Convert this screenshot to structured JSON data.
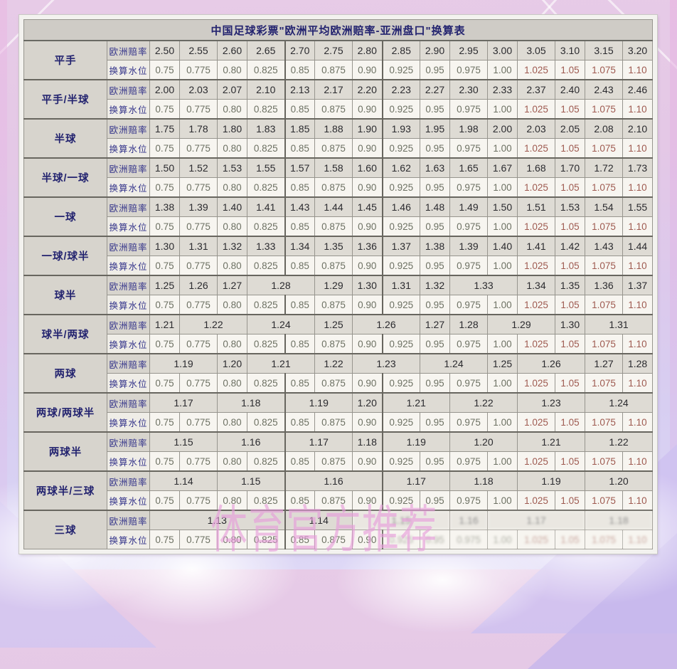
{
  "page": {
    "title": "中国足球彩票\"欧洲平均欧洲赔率-亚洲盘口\"换算表",
    "watermark": "体育官方推荐"
  },
  "table": {
    "row_header_odds": "欧洲赔率",
    "row_header_water": "换算水位",
    "water_levels": [
      "0.75",
      "0.775",
      "0.80",
      "0.825",
      "0.85",
      "0.875",
      "0.90",
      "0.925",
      "0.95",
      "0.975",
      "1.00",
      "1.025",
      "1.05",
      "1.075",
      "1.10"
    ],
    "groups": [
      {
        "handicap": "平手",
        "odds": [
          [
            "2.50",
            1
          ],
          [
            "2.55",
            1
          ],
          [
            "2.60",
            1
          ],
          [
            "2.65",
            1
          ],
          [
            "2.70",
            1
          ],
          [
            "2.75",
            1
          ],
          [
            "2.80",
            1
          ],
          [
            "2.85",
            1
          ],
          [
            "2.90",
            1
          ],
          [
            "2.95",
            1
          ],
          [
            "3.00",
            1
          ],
          [
            "3.05",
            1
          ],
          [
            "3.10",
            1
          ],
          [
            "3.15",
            1
          ],
          [
            "3.20",
            1
          ]
        ]
      },
      {
        "handicap": "平手/半球",
        "odds": [
          [
            "2.00",
            1
          ],
          [
            "2.03",
            1
          ],
          [
            "2.07",
            1
          ],
          [
            "2.10",
            1
          ],
          [
            "2.13",
            1
          ],
          [
            "2.17",
            1
          ],
          [
            "2.20",
            1
          ],
          [
            "2.23",
            1
          ],
          [
            "2.27",
            1
          ],
          [
            "2.30",
            1
          ],
          [
            "2.33",
            1
          ],
          [
            "2.37",
            1
          ],
          [
            "2.40",
            1
          ],
          [
            "2.43",
            1
          ],
          [
            "2.46",
            1
          ]
        ]
      },
      {
        "handicap": "半球",
        "odds": [
          [
            "1.75",
            1
          ],
          [
            "1.78",
            1
          ],
          [
            "1.80",
            1
          ],
          [
            "1.83",
            1
          ],
          [
            "1.85",
            1
          ],
          [
            "1.88",
            1
          ],
          [
            "1.90",
            1
          ],
          [
            "1.93",
            1
          ],
          [
            "1.95",
            1
          ],
          [
            "1.98",
            1
          ],
          [
            "2.00",
            1
          ],
          [
            "2.03",
            1
          ],
          [
            "2.05",
            1
          ],
          [
            "2.08",
            1
          ],
          [
            "2.10",
            1
          ]
        ]
      },
      {
        "handicap": "半球/一球",
        "odds": [
          [
            "1.50",
            1
          ],
          [
            "1.52",
            1
          ],
          [
            "1.53",
            1
          ],
          [
            "1.55",
            1
          ],
          [
            "1.57",
            1
          ],
          [
            "1.58",
            1
          ],
          [
            "1.60",
            1
          ],
          [
            "1.62",
            1
          ],
          [
            "1.63",
            1
          ],
          [
            "1.65",
            1
          ],
          [
            "1.67",
            1
          ],
          [
            "1.68",
            1
          ],
          [
            "1.70",
            1
          ],
          [
            "1.72",
            1
          ],
          [
            "1.73",
            1
          ]
        ]
      },
      {
        "handicap": "一球",
        "odds": [
          [
            "1.38",
            1
          ],
          [
            "1.39",
            1
          ],
          [
            "1.40",
            1
          ],
          [
            "1.41",
            1
          ],
          [
            "1.43",
            1
          ],
          [
            "1.44",
            1
          ],
          [
            "1.45",
            1
          ],
          [
            "1.46",
            1
          ],
          [
            "1.48",
            1
          ],
          [
            "1.49",
            1
          ],
          [
            "1.50",
            1
          ],
          [
            "1.51",
            1
          ],
          [
            "1.53",
            1
          ],
          [
            "1.54",
            1
          ],
          [
            "1.55",
            1
          ]
        ]
      },
      {
        "handicap": "一球/球半",
        "odds": [
          [
            "1.30",
            1
          ],
          [
            "1.31",
            1
          ],
          [
            "1.32",
            1
          ],
          [
            "1.33",
            1
          ],
          [
            "1.34",
            1
          ],
          [
            "1.35",
            1
          ],
          [
            "1.36",
            1
          ],
          [
            "1.37",
            1
          ],
          [
            "1.38",
            1
          ],
          [
            "1.39",
            1
          ],
          [
            "1.40",
            1
          ],
          [
            "1.41",
            1
          ],
          [
            "1.42",
            1
          ],
          [
            "1.43",
            1
          ],
          [
            "1.44",
            1
          ]
        ]
      },
      {
        "handicap": "球半",
        "odds": [
          [
            "1.25",
            1
          ],
          [
            "1.26",
            1
          ],
          [
            "1.27",
            1
          ],
          [
            "1.28",
            2
          ],
          [
            "1.29",
            1
          ],
          [
            "1.30",
            1
          ],
          [
            "1.31",
            1
          ],
          [
            "1.32",
            1
          ],
          [
            "1.33",
            2
          ],
          [
            "1.34",
            1
          ],
          [
            "1.35",
            1
          ],
          [
            "1.36",
            1
          ],
          [
            "1.37",
            1
          ]
        ]
      },
      {
        "handicap": "球半/两球",
        "odds": [
          [
            "1.21",
            1
          ],
          [
            "1.22",
            2
          ],
          [
            "1.24",
            2
          ],
          [
            "1.25",
            1
          ],
          [
            "1.26",
            2
          ],
          [
            "1.27",
            1
          ],
          [
            "1.28",
            1
          ],
          [
            "1.29",
            2
          ],
          [
            "1.30",
            1
          ],
          [
            "1.31",
            2
          ]
        ]
      },
      {
        "handicap": "两球",
        "odds": [
          [
            "1.19",
            2
          ],
          [
            "1.20",
            1
          ],
          [
            "1.21",
            2
          ],
          [
            "1.22",
            1
          ],
          [
            "1.23",
            2
          ],
          [
            "1.24",
            2
          ],
          [
            "1.25",
            1
          ],
          [
            "1.26",
            2
          ],
          [
            "1.27",
            1
          ],
          [
            "1.28",
            1
          ]
        ]
      },
      {
        "handicap": "两球/两球半",
        "odds": [
          [
            "1.17",
            2
          ],
          [
            "1.18",
            2
          ],
          [
            "1.19",
            2
          ],
          [
            "1.20",
            1
          ],
          [
            "1.21",
            2
          ],
          [
            "1.22",
            2
          ],
          [
            "1.23",
            2
          ],
          [
            "1.24",
            2
          ]
        ]
      },
      {
        "handicap": "两球半",
        "odds": [
          [
            "1.15",
            2
          ],
          [
            "1.16",
            2
          ],
          [
            "1.17",
            2
          ],
          [
            "1.18",
            1
          ],
          [
            "1.19",
            2
          ],
          [
            "1.20",
            2
          ],
          [
            "1.21",
            2
          ],
          [
            "1.22",
            2
          ]
        ]
      },
      {
        "handicap": "两球半/三球",
        "odds": [
          [
            "1.14",
            2
          ],
          [
            "1.15",
            2
          ],
          [
            "1.16",
            3
          ],
          [
            "1.17",
            2
          ],
          [
            "1.18",
            2
          ],
          [
            "1.19",
            2
          ],
          [
            "1.20",
            2
          ]
        ]
      },
      {
        "handicap": "三球",
        "faded": true,
        "odds": [
          [
            "1.13",
            4
          ],
          [
            "1.14",
            2
          ],
          [
            "1.15",
            3
          ],
          [
            "1.16",
            1
          ],
          [
            "1.17",
            3
          ],
          [
            "1.18",
            2
          ]
        ]
      }
    ]
  },
  "colors": {
    "navy": "#23236f",
    "water_gray": "#6d7163",
    "water_red": "#9e5a50",
    "watermark_pink": "#e79cdb"
  }
}
